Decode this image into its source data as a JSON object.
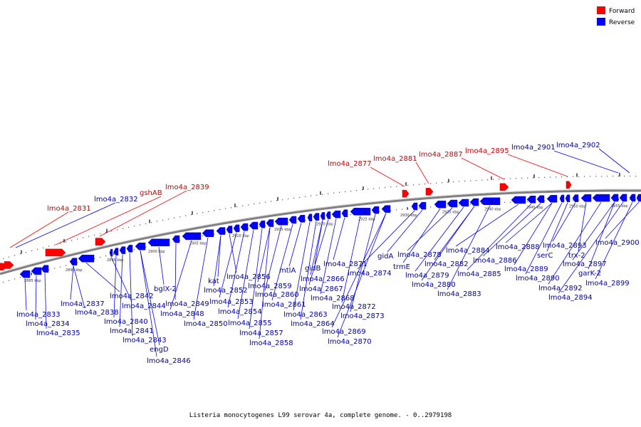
{
  "legend": [
    {
      "label": "Forward",
      "color": "#ff0000"
    },
    {
      "label": "Reverse",
      "color": "#0000ff"
    }
  ],
  "caption": "Listeria monocytogenes L99 serovar 4a, complete genome. - 0..2979198",
  "colors": {
    "forward": "#ff0000",
    "reverse": "#0000ff",
    "backbone": "#808080",
    "label_forward": "#cc0000",
    "label_reverse": "#000099"
  },
  "kbp_marks": [
    "2885 kbp",
    "2890 kbp",
    "2895 kbp",
    "2900 kbp",
    "2905 kbp",
    "2910 kbp",
    "2915 kbp",
    "2920 kbp",
    "2925 kbp",
    "2930 kbp",
    "2935 kbp",
    "2940 kbp",
    "2945 kbp",
    "2950 kbp",
    "2955 kbp"
  ],
  "forward_genes": [
    "lmo4a_2831",
    "lmo4a_2832",
    "gshAB",
    "lmo4a_2839",
    "lmo4a_2877",
    "lmo4a_2881",
    "lmo4a_2887",
    "lmo4a_2895",
    "lmo4a_2901",
    "lmo4a_2902"
  ],
  "reverse_genes": [
    "lmo4a_2833",
    "lmo4a_2834",
    "lmo4a_2835",
    "lmo4a_2837",
    "lmo4a_2838",
    "lmo4a_2842",
    "lmo4a_2844",
    "lmo4a_2840",
    "lmo4a_2841",
    "lmo4a_2843",
    "engD",
    "lmo4a_2846",
    "bglX-2",
    "lmo4a_2849",
    "lmo4a_2848",
    "lmo4a_2850",
    "kat",
    "lmo4a_2852",
    "lmo4a_2856",
    "lmo4a_2853",
    "lmo4a_2854",
    "lmo4a_2855",
    "lmo4a_2857",
    "lmo4a_2858",
    "lmo4a_2859",
    "lmo4a_2860",
    "lmo4a_2861",
    "mtlA",
    "lmo4a_2863",
    "lmo4a_2864",
    "gidB",
    "lmo4a_2866",
    "lmo4a_2867",
    "lmo4a_2868",
    "lmo4a_2871",
    "lmo4a_2872",
    "lmo4a_2873",
    "lmo4a_2869",
    "lmo4a_2870",
    "lmo4a_2874",
    "gidA",
    "trmE",
    "lmo4a_2878",
    "lmo4a_2879",
    "lmo4a_2880",
    "lmo4a_2882",
    "lmo4a_2883",
    "lmo4a_2884",
    "lmo4a_2885",
    "lmo4a_2886",
    "lmo4a_2888",
    "lmo4a_2889",
    "lmo4a_2890",
    "serC",
    "lmo4a_2893",
    "trx-2",
    "lmo4a_2892",
    "lmo4a_2897",
    "garK-2",
    "lmo4a_2894",
    "lmo4a_2899",
    "lmo4a_2900"
  ]
}
